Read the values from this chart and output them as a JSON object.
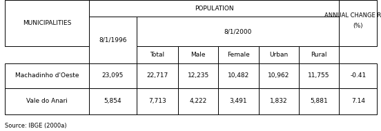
{
  "title": "POPULATION",
  "subtitle_year": "8/1/2000",
  "col_1996": "8/1/1996",
  "annual_label_line1": "ANNUAL CHANGE RATE",
  "annual_label_line2": "(%)",
  "municipalities_label": "MUNICIPALITIES",
  "sub_headers": [
    "Total",
    "Male",
    "Female",
    "Urban",
    "Rural"
  ],
  "rows": [
    {
      "name": "Machadinho d'Oeste",
      "pop1996": "23,095",
      "total": "22,717",
      "male": "12,235",
      "female": "10,482",
      "urban": "10,962",
      "rural": "11,755",
      "rate": "-0.41"
    },
    {
      "name": "Vale do Anari",
      "pop1996": "5,854",
      "total": "7,713",
      "male": "4,222",
      "female": "3,491",
      "urban": "1,832",
      "rural": "5,881",
      "rate": "7.14"
    }
  ],
  "source": "Source: IBGE (2000a)",
  "background_color": "#ffffff",
  "border_color": "#000000",
  "font_size": 6.5
}
